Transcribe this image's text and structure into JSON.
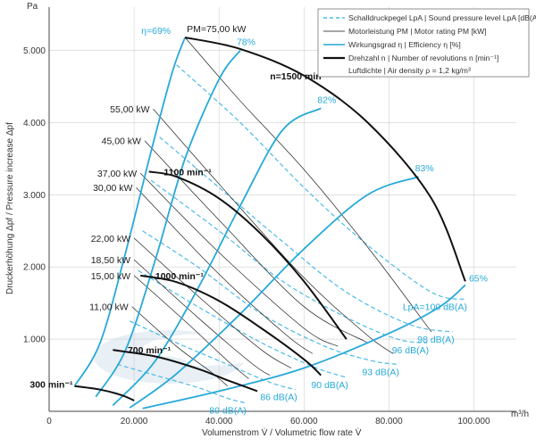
{
  "chart_data": {
    "type": "line",
    "xlabel": "Volumenstrom V̇ / Volumetric flow rate V̇",
    "ylabel": "Druckerhöhung Δpf / Pressure increase Δpf",
    "x_unit": "m³/h",
    "y_unit": "Pa",
    "xlim": [
      0,
      110000
    ],
    "ylim": [
      0,
      5600
    ],
    "x_ticks": [
      {
        "value": 0,
        "label": "0"
      },
      {
        "value": 20000,
        "label": "20.000"
      },
      {
        "value": 40000,
        "label": "40.000"
      },
      {
        "value": 60000,
        "label": "60.000"
      },
      {
        "value": 80000,
        "label": "80.000"
      },
      {
        "value": 100000,
        "label": "100.000"
      }
    ],
    "y_ticks": [
      {
        "value": 1000,
        "label": "1.000"
      },
      {
        "value": 2000,
        "label": "2.000"
      },
      {
        "value": 3000,
        "label": "3.000"
      },
      {
        "value": 4000,
        "label": "4.000"
      },
      {
        "value": 5000,
        "label": "5.000"
      }
    ],
    "legend": {
      "position": "top-right",
      "items": [
        {
          "label": "Schalldruckpegel LpA | Sound pressure level LpA [dB(A)]",
          "style": "dashed-blue"
        },
        {
          "label": "Motorleistung PM | Motor rating PM [kW]",
          "style": "thin-black"
        },
        {
          "label": "Wirkungsgrad η | Efficiency η [%]",
          "style": "blue"
        },
        {
          "label": "Drehzahl n | Number of revolutions n [min⁻¹]",
          "style": "thick-black"
        },
        {
          "label": "Luftdichte | Air density ρ = 1,2 kg/m³",
          "style": "none"
        }
      ]
    },
    "speed_curves": [
      {
        "name": "n=1500 min⁻¹",
        "label": "n=1500 min⁻¹",
        "points": [
          [
            32000,
            5180
          ],
          [
            45000,
            5020
          ],
          [
            60000,
            4650
          ],
          [
            75000,
            4000
          ],
          [
            90000,
            2950
          ],
          [
            98000,
            1800
          ]
        ]
      },
      {
        "name": "1100 min⁻¹",
        "label": "1100 min⁻¹",
        "points": [
          [
            23500,
            3320
          ],
          [
            30000,
            3250
          ],
          [
            40000,
            2950
          ],
          [
            50000,
            2450
          ],
          [
            60000,
            1800
          ],
          [
            70000,
            1000
          ]
        ]
      },
      {
        "name": "1000 min⁻¹",
        "label": "1000 min⁻¹",
        "points": [
          [
            21500,
            1880
          ],
          [
            30000,
            1790
          ],
          [
            40000,
            1530
          ],
          [
            50000,
            1150
          ],
          [
            60000,
            720
          ],
          [
            64000,
            500
          ]
        ]
      },
      {
        "name": "700 min⁻¹",
        "label": "700 min⁻¹",
        "points": [
          [
            15000,
            850
          ],
          [
            25000,
            760
          ],
          [
            35000,
            590
          ],
          [
            42000,
            430
          ],
          [
            49000,
            280
          ]
        ]
      },
      {
        "name": "300 min⁻¹",
        "label": "300 min⁻¹",
        "points": [
          [
            6000,
            350
          ],
          [
            12000,
            300
          ],
          [
            17000,
            225
          ],
          [
            20000,
            150
          ]
        ]
      }
    ],
    "efficiency_curves": [
      {
        "name": "η=69%",
        "label": "η=69%",
        "points": [
          [
            6000,
            350
          ],
          [
            12000,
            950
          ],
          [
            18000,
            2200
          ],
          [
            24000,
            3600
          ],
          [
            29000,
            4700
          ],
          [
            32000,
            5180
          ]
        ]
      },
      {
        "name": "78%",
        "label": "78%",
        "points": [
          [
            11000,
            200
          ],
          [
            18000,
            850
          ],
          [
            25000,
            2100
          ],
          [
            32000,
            3500
          ],
          [
            40000,
            4600
          ],
          [
            45000,
            5000
          ]
        ]
      },
      {
        "name": "82%",
        "label": "82%",
        "points": [
          [
            15000,
            80
          ],
          [
            25000,
            700
          ],
          [
            35000,
            1700
          ],
          [
            45000,
            2850
          ],
          [
            55000,
            3900
          ],
          [
            64000,
            4200
          ]
        ]
      },
      {
        "name": "83%",
        "label": "83%",
        "points": [
          [
            19000,
            50
          ],
          [
            30000,
            520
          ],
          [
            45000,
            1350
          ],
          [
            60000,
            2250
          ],
          [
            75000,
            3000
          ],
          [
            87000,
            3250
          ]
        ]
      },
      {
        "name": "65%",
        "label": "65%",
        "points": [
          [
            22000,
            40
          ],
          [
            40000,
            280
          ],
          [
            60000,
            600
          ],
          [
            80000,
            1080
          ],
          [
            92000,
            1450
          ],
          [
            98000,
            1750
          ]
        ]
      }
    ],
    "power_lines": [
      {
        "name": "PM=75,00 kW",
        "label": "PM=75,00 kW",
        "points": [
          [
            32000,
            5180
          ],
          [
            45000,
            4300
          ],
          [
            60000,
            3350
          ],
          [
            76000,
            2200
          ],
          [
            90000,
            1100
          ]
        ]
      },
      {
        "name": "55,00 kW",
        "label": "55,00 kW",
        "points": [
          [
            24500,
            4190
          ],
          [
            40000,
            3150
          ],
          [
            60000,
            1850
          ],
          [
            75000,
            1050
          ],
          [
            81000,
            800
          ]
        ]
      },
      {
        "name": "45,00 kW",
        "label": "45,00 kW",
        "points": [
          [
            22500,
            3750
          ],
          [
            40000,
            2650
          ],
          [
            60000,
            1450
          ],
          [
            75000,
            950
          ]
        ]
      },
      {
        "name": "37,00 kW",
        "label": "37,00 kW",
        "points": [
          [
            21500,
            3300
          ],
          [
            40000,
            2200
          ],
          [
            60000,
            1150
          ],
          [
            68000,
            900
          ]
        ]
      },
      {
        "name": "30,00 kW",
        "label": "30,00 kW",
        "points": [
          [
            20500,
            3100
          ],
          [
            40000,
            1900
          ],
          [
            56000,
            1050
          ],
          [
            62000,
            800
          ]
        ]
      },
      {
        "name": "22,00 kW",
        "label": "22,00 kW",
        "points": [
          [
            20000,
            2400
          ],
          [
            35000,
            1600
          ],
          [
            50000,
            850
          ],
          [
            57000,
            600
          ]
        ]
      },
      {
        "name": "18,50 kW",
        "label": "18,50 kW",
        "points": [
          [
            20000,
            2100
          ],
          [
            35000,
            1300
          ],
          [
            48000,
            650
          ],
          [
            52000,
            500
          ]
        ]
      },
      {
        "name": "15,00 kW",
        "label": "15,00 kW",
        "points": [
          [
            20000,
            1880
          ],
          [
            32000,
            1250
          ],
          [
            42000,
            700
          ],
          [
            47000,
            450
          ]
        ]
      },
      {
        "name": "11,00 kW",
        "label": "11,00 kW",
        "points": [
          [
            19500,
            1450
          ],
          [
            30000,
            900
          ],
          [
            38000,
            550
          ],
          [
            42000,
            350
          ]
        ]
      }
    ],
    "sound_lines": [
      {
        "name": "LpA=100 dB(A)",
        "label": "LpA=100 dB(A)",
        "points": [
          [
            30000,
            4800
          ],
          [
            45000,
            4000
          ],
          [
            60000,
            3100
          ],
          [
            75000,
            2300
          ],
          [
            90000,
            1650
          ],
          [
            98000,
            1550
          ]
        ]
      },
      {
        "name": "98 dB(A)",
        "label": "98 dB(A)",
        "points": [
          [
            26000,
            3800
          ],
          [
            40000,
            3100
          ],
          [
            55000,
            2350
          ],
          [
            70000,
            1650
          ],
          [
            85000,
            1200
          ],
          [
            95000,
            1100
          ]
        ]
      },
      {
        "name": "96 dB(A)",
        "label": "96 dB(A)",
        "points": [
          [
            24000,
            3200
          ],
          [
            40000,
            2500
          ],
          [
            55000,
            1800
          ],
          [
            70000,
            1300
          ],
          [
            82000,
            1000
          ],
          [
            89000,
            950
          ]
        ]
      },
      {
        "name": "93 dB(A)",
        "label": "93 dB(A)",
        "points": [
          [
            22000,
            2500
          ],
          [
            35000,
            2000
          ],
          [
            50000,
            1350
          ],
          [
            65000,
            900
          ],
          [
            76000,
            700
          ],
          [
            82000,
            650
          ]
        ]
      },
      {
        "name": "90 dB(A)",
        "label": "90 dB(A)",
        "points": [
          [
            21000,
            1950
          ],
          [
            35000,
            1450
          ],
          [
            50000,
            950
          ],
          [
            63000,
            600
          ],
          [
            70000,
            470
          ]
        ]
      },
      {
        "name": "86 dB(A)",
        "label": "86 dB(A)",
        "points": [
          [
            19000,
            1250
          ],
          [
            30000,
            950
          ],
          [
            42000,
            650
          ],
          [
            52000,
            400
          ],
          [
            58000,
            300
          ]
        ]
      },
      {
        "name": "80 dB(A)",
        "label": "80 dB(A)",
        "points": [
          [
            16000,
            650
          ],
          [
            25000,
            500
          ],
          [
            35000,
            330
          ],
          [
            42000,
            180
          ],
          [
            46000,
            120
          ]
        ]
      }
    ],
    "colors": {
      "blue": "#27a9d9",
      "dashed_blue": "#4cbbe6",
      "black": "#111111",
      "grid": "#cfcfcf"
    }
  }
}
